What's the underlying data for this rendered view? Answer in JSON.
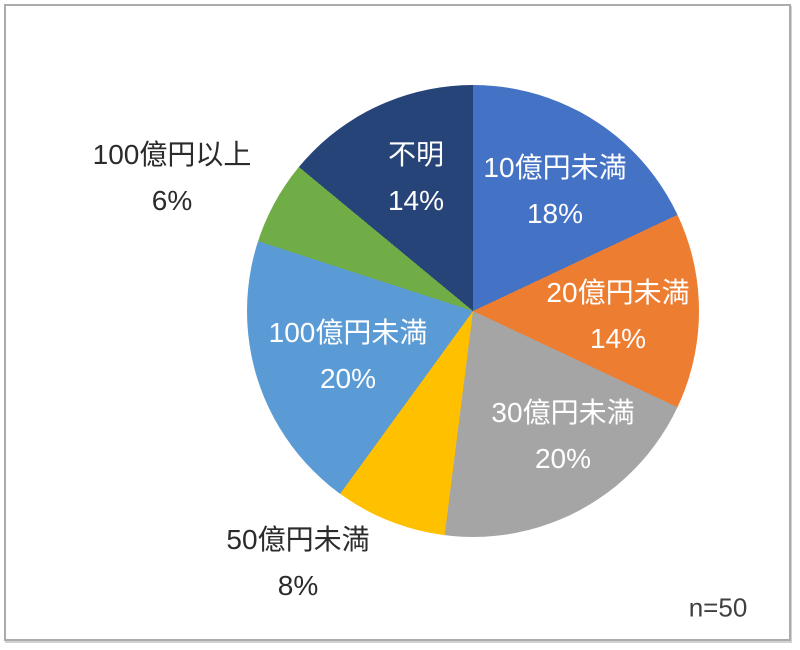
{
  "chart_data": {
    "type": "pie",
    "title": "",
    "start_angle_deg": 0,
    "direction": "clockwise",
    "legend": "none",
    "total_percent": 100,
    "slices": [
      {
        "label": "10億円未満",
        "value": 18,
        "percent_label": "18%",
        "color": "#4472C4",
        "label_color": "#FFFFFF",
        "label_placement": "inside"
      },
      {
        "label": "20億円未満",
        "value": 14,
        "percent_label": "14%",
        "color": "#ED7D31",
        "label_color": "#FFFFFF",
        "label_placement": "inside"
      },
      {
        "label": "30億円未満",
        "value": 20,
        "percent_label": "20%",
        "color": "#A5A5A5",
        "label_color": "#FFFFFF",
        "label_placement": "inside"
      },
      {
        "label": "50億円未満",
        "value": 8,
        "percent_label": "8%",
        "color": "#FFC000",
        "label_color": "#2B2B2B",
        "label_placement": "outside"
      },
      {
        "label": "100億円未満",
        "value": 20,
        "percent_label": "20%",
        "color": "#5B9BD5",
        "label_color": "#FFFFFF",
        "label_placement": "inside"
      },
      {
        "label": "100億円以上",
        "value": 6,
        "percent_label": "6%",
        "color": "#70AD47",
        "label_color": "#2B2B2B",
        "label_placement": "outside"
      },
      {
        "label": "不明",
        "value": 14,
        "percent_label": "14%",
        "color": "#264478",
        "label_color": "#FFFFFF",
        "label_placement": "inside"
      }
    ],
    "annotation": "n=50"
  },
  "frame": {
    "border_color": "#ABABAB",
    "background": "#FFFFFF"
  }
}
